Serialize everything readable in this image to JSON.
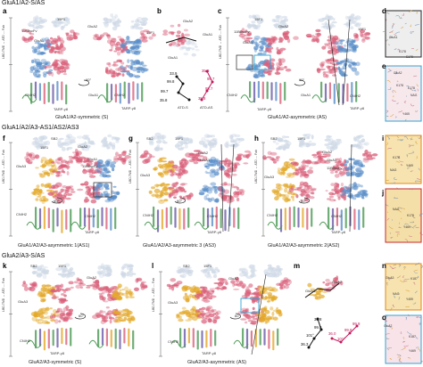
{
  "sections": {
    "s1": "GluA1/A2-S/AS",
    "s2": "GluA1/A2/A3-AS1/AS2/AS3",
    "s3": "GluA2/A3-S/AS"
  },
  "panels": [
    "a",
    "b",
    "c",
    "d",
    "e",
    "f",
    "g",
    "h",
    "i",
    "j",
    "k",
    "l",
    "m",
    "n",
    "o"
  ],
  "captions": {
    "a": "GluA1/A2-symmetric (S)",
    "c": "GluA1/A2-asymmetric (AS)",
    "f": "GluA1/A2/A3-asymmetric 1(AS1)",
    "g": "GluA1/A2/A3-asymmetric 3 (AS3)",
    "h": "GluA1/A2/A3-asymmetric 2(AS2)",
    "k": "GluA2/A3-symmetric (S)",
    "l": "GluA2/A3-asymmetric (AS)"
  },
  "labels": {
    "g15f1": "15F1",
    "sb2": "SB2",
    "glua1": "GluA1",
    "glua2": "GluA2",
    "glua3": "GluA3",
    "fab": "11B8scFv",
    "cnih2": "CNIH2",
    "tarp": "TARP-γ8",
    "rot": "60°",
    "axis": "LBD-TMD ↔ ATD ↔ Fab",
    "atd_s": "ATD-S",
    "atd_as": "ATD-AS",
    "nag": "NAG",
    "k178": "K178",
    "e178": "E178",
    "y469": "Y469",
    "y465": "Y465",
    "k187": "K187",
    "y459": "Y459"
  },
  "angles_b": {
    "black": [
      "35.8",
      "99.7",
      "99.8",
      "33.9"
    ],
    "red": [
      "35.8",
      "98.7",
      "98.7",
      "35.8"
    ]
  },
  "angles_m": {
    "black": [
      "36.3",
      "101°",
      "99.8",
      "36.8"
    ],
    "red": [
      "36.0",
      "101°",
      "99.8",
      "99.9"
    ]
  },
  "colors": {
    "glua1_blue": "#5b8fc9",
    "glua2_pink": "#d9607a",
    "glua3_gold": "#e3a92a",
    "fab_light": "#cfd9e6",
    "cnih_green": "#4c9a55",
    "tarp_purple": "#6a5aa8",
    "box_blue": "#2fa6d6",
    "box_red": "#c62828",
    "box_orange": "#e08a16"
  }
}
